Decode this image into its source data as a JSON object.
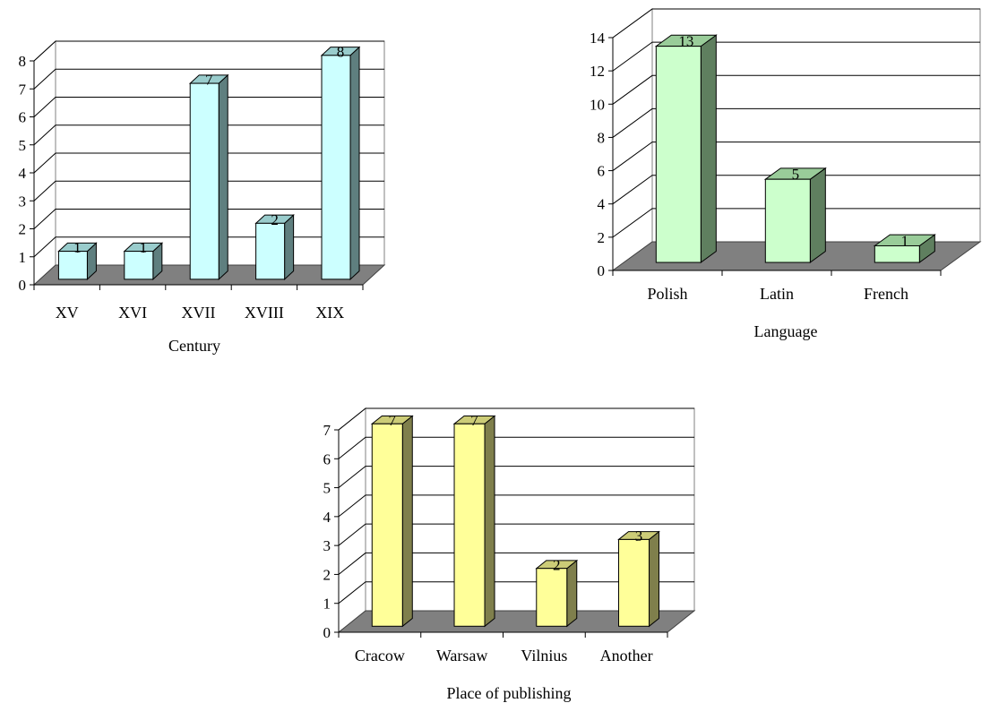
{
  "chart_data": [
    {
      "type": "bar",
      "xlabel": "Century",
      "categories": [
        "XV",
        "XVI",
        "XVII",
        "XVIII",
        "XIX"
      ],
      "values": [
        1,
        1,
        7,
        2,
        8
      ],
      "ylim": [
        0,
        8
      ],
      "yticks": [
        "0",
        "1",
        "2",
        "3",
        "4",
        "5",
        "6",
        "7",
        "8"
      ],
      "grid": true,
      "colors": {
        "front": "#ccffff",
        "side": "#5f7f7f",
        "top": "#99cccc",
        "floor": "#808080"
      }
    },
    {
      "type": "bar",
      "xlabel": "Language",
      "categories": [
        "Polish",
        "Latin",
        "French"
      ],
      "values": [
        13,
        5,
        1
      ],
      "ylim": [
        0,
        14
      ],
      "yticks": [
        "0",
        "2",
        "4",
        "6",
        "8",
        "10",
        "12",
        "14"
      ],
      "grid": true,
      "colors": {
        "front": "#ccffcc",
        "side": "#5f7f5f",
        "top": "#99cc99",
        "floor": "#808080"
      }
    },
    {
      "type": "bar",
      "xlabel": "Place of publishing",
      "categories": [
        "Cracow",
        "Warsaw",
        "Vilnius",
        "Another"
      ],
      "values": [
        7,
        7,
        2,
        3
      ],
      "ylim": [
        0,
        7
      ],
      "yticks": [
        "0",
        "1",
        "2",
        "3",
        "4",
        "5",
        "6",
        "7"
      ],
      "grid": true,
      "colors": {
        "front": "#ffff99",
        "side": "#7f7f4c",
        "top": "#cccc77",
        "floor": "#808080"
      }
    }
  ]
}
